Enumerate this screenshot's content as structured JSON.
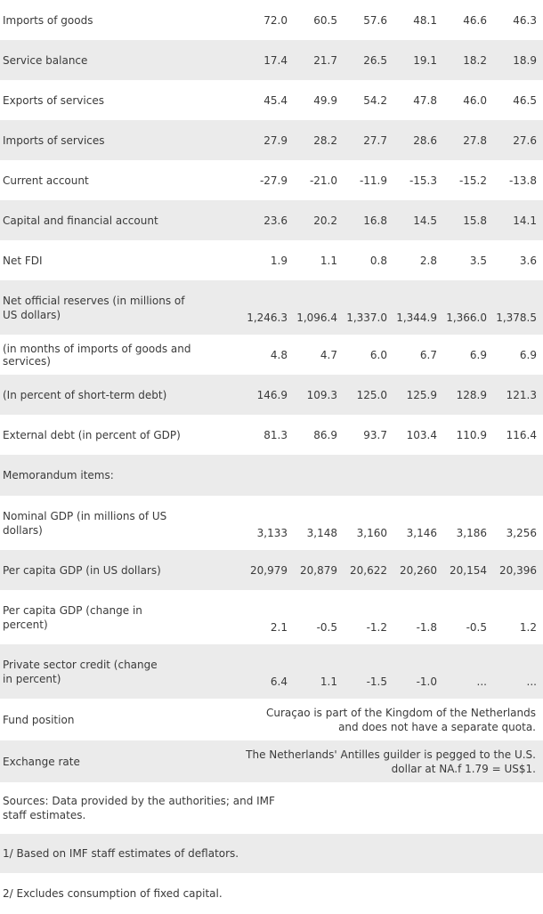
{
  "rows": [
    {
      "label": "Imports of goods",
      "values": [
        "72.0",
        "60.5",
        "57.6",
        "48.1",
        "46.6",
        "46.3"
      ]
    },
    {
      "label": "Service balance",
      "values": [
        "17.4",
        "21.7",
        "26.5",
        "19.1",
        "18.2",
        "18.9"
      ]
    },
    {
      "label": "Exports of services",
      "values": [
        "45.4",
        "49.9",
        "54.2",
        "47.8",
        "46.0",
        "46.5"
      ]
    },
    {
      "label": "Imports of services",
      "values": [
        "27.9",
        "28.2",
        "27.7",
        "28.6",
        "27.8",
        "27.6"
      ]
    },
    {
      "label": "Current account",
      "values": [
        "-27.9",
        "-21.0",
        "-11.9",
        "-15.3",
        "-15.2",
        "-13.8"
      ]
    },
    {
      "label": "Capital and financial account",
      "values": [
        "23.6",
        "20.2",
        "16.8",
        "14.5",
        "15.8",
        "14.1"
      ]
    },
    {
      "label": "Net FDI",
      "values": [
        "1.9",
        "1.1",
        "0.8",
        "2.8",
        "3.5",
        "3.6"
      ]
    },
    {
      "label": "Net official reserves (in millions of US dollars)",
      "values": [
        "1,246.3",
        "1,096.4",
        "1,337.0",
        "1,344.9",
        "1,366.0",
        "1,378.5"
      ]
    },
    {
      "label": "(in months of imports of goods and services)",
      "values": [
        "4.8",
        "4.7",
        "6.0",
        "6.7",
        "6.9",
        "6.9"
      ]
    },
    {
      "label": "(In percent of short-term debt)",
      "values": [
        "146.9",
        "109.3",
        "125.0",
        "125.9",
        "128.9",
        "121.3"
      ]
    },
    {
      "label": "External debt (in percent of GDP)",
      "values": [
        "81.3",
        "86.9",
        "93.7",
        "103.4",
        "110.9",
        "116.4"
      ]
    },
    {
      "label": "Memorandum items:",
      "values": [
        "",
        "",
        "",
        "",
        "",
        ""
      ]
    },
    {
      "label": "Nominal GDP (in millions of US dollars)",
      "values": [
        "3,133",
        "3,148",
        "3,160",
        "3,146",
        "3,186",
        "3,256"
      ]
    },
    {
      "label": "Per capita GDP (in US dollars)",
      "values": [
        "20,979",
        "20,879",
        "20,622",
        "20,260",
        "20,154",
        "20,396"
      ]
    },
    {
      "label": "Per capita GDP (change in percent)",
      "values": [
        "2.1",
        "-0.5",
        "-1.2",
        "-1.8",
        "-0.5",
        "1.2"
      ]
    },
    {
      "label": "Private sector credit (change in percent)",
      "values": [
        "6.4",
        "1.1",
        "-1.5",
        "-1.0",
        "...",
        "..."
      ]
    }
  ],
  "fund_position": {
    "label": "Fund position",
    "text": "Curaçao is part of the Kingdom of the Netherlands and does not have a separate quota."
  },
  "exchange_rate": {
    "label": "Exchange rate",
    "text": "The Netherlands' Antilles guilder is pegged to the U.S. dollar at NA.f 1.79 = US$1."
  },
  "notes": [
    "Sources: Data provided by the authorities; and IMF staff estimates.",
    "1/ Based on IMF staff estimates of deflators.",
    "2/ Excludes consumption of fixed capital."
  ]
}
